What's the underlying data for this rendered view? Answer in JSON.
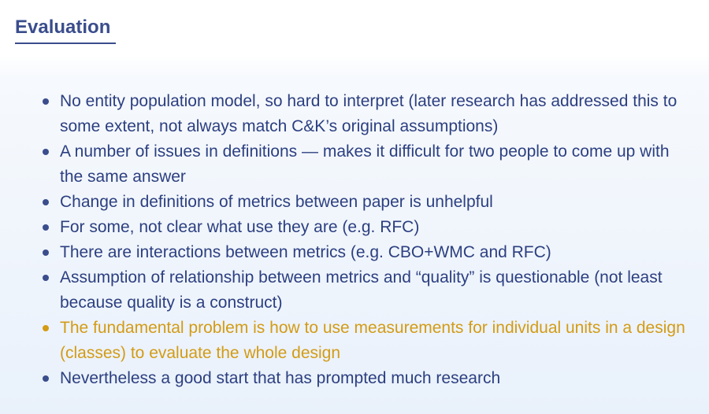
{
  "slide": {
    "title": "Evaluation",
    "bullets": [
      {
        "text": "No entity population model, so hard to interpret (later research has addressed this to some extent, not always match C&K’s original assumptions)"
      },
      {
        "text": "A number of issues in definitions — makes it difficult for two people to come up with the same answer"
      },
      {
        "text": "Change in definitions of metrics between paper is unhelpful"
      },
      {
        "text": "For some, not clear what use they are (e.g. RFC)"
      },
      {
        "text": "There are interactions between metrics (e.g. CBO+WMC and RFC)"
      },
      {
        "text": "Assumption of relationship between metrics and “quality” is questionable (not least because quality is a construct)"
      },
      {
        "text": "The fundamental problem is how to use measurements for individual units in a design (classes) to evaluate the whole design",
        "highlight_color": "#d39b16"
      },
      {
        "text": "Nevertheless a good start that has prompted much research"
      }
    ]
  },
  "colors": {
    "title": "#3a4d8c",
    "body_text": "#2c3f80",
    "highlight": "#d39b16"
  }
}
